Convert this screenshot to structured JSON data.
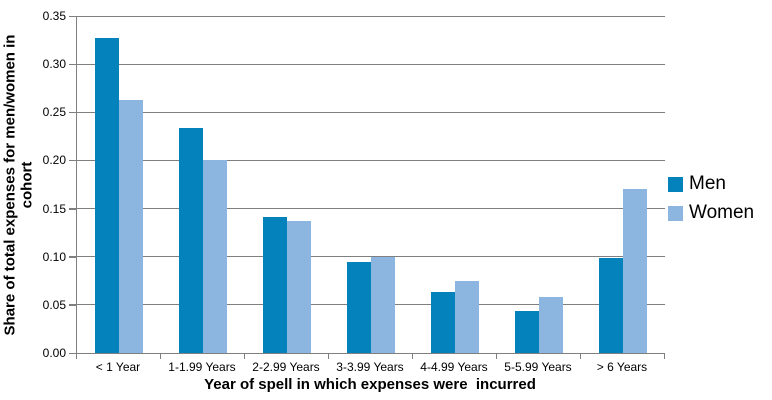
{
  "chart_data": {
    "type": "bar",
    "title": "",
    "categories": [
      "< 1 Year",
      "1-1.99 Years",
      "2-2.99 Years",
      "3-3.99 Years",
      "4-4.99 Years",
      "5-5.99 Years",
      "> 6 Years"
    ],
    "series": [
      {
        "name": "Men",
        "color": "#0382BC",
        "values": [
          0.327,
          0.234,
          0.141,
          0.095,
          0.063,
          0.044,
          0.099
        ]
      },
      {
        "name": "Women",
        "color": "#8CB5DF",
        "values": [
          0.263,
          0.2,
          0.137,
          0.1,
          0.075,
          0.058,
          0.17
        ]
      }
    ],
    "xlabel": "Year of spell in which expenses were  incurred",
    "ylabel": "Share of total expenses for men/women in cohort",
    "ylabel_lines": [
      "Share of total expenses for men/women in",
      "cohort"
    ],
    "ylim": [
      0,
      0.35
    ],
    "ytick_step": 0.05,
    "ytick_labels": [
      "0.00",
      "0.05",
      "0.10",
      "0.15",
      "0.20",
      "0.25",
      "0.30",
      "0.35"
    ],
    "grid": "horizontal",
    "grid_color": "#7F7F7F",
    "axis_color": "#7F7F7F",
    "text_color": "#000000",
    "legend_position": "right"
  }
}
